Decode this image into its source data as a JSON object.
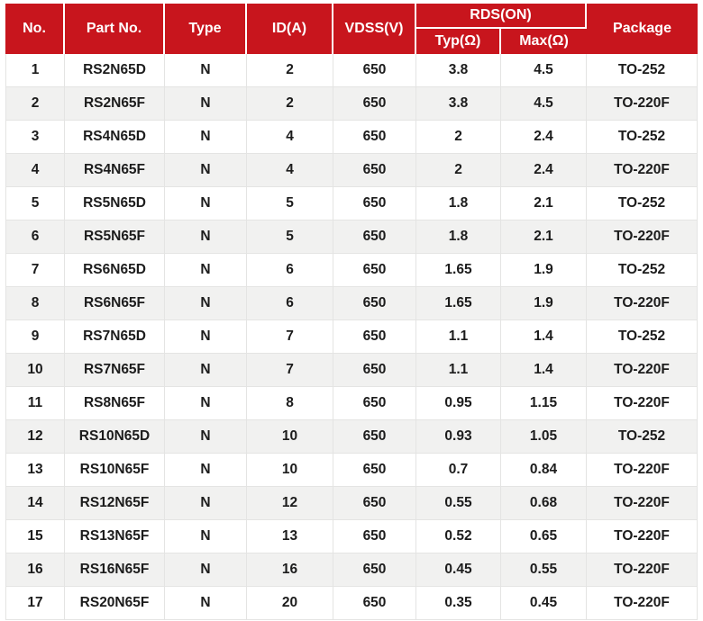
{
  "colors": {
    "header_bg": "#c8151d",
    "header_text": "#ffffff",
    "row_alt_bg": "#f1f1f0",
    "body_text": "#1c1c1c",
    "grid_line": "#e4e4e3"
  },
  "table": {
    "columns": {
      "no": "No.",
      "part_no": "Part No.",
      "type": "Type",
      "id_a": "ID(A)",
      "vdss_v": "VDSS(V)",
      "rds_on_group": "RDS(ON)",
      "typ_ohm": "Typ(Ω)",
      "max_ohm": "Max(Ω)",
      "package": "Package"
    },
    "rows": [
      [
        "1",
        "RS2N65D",
        "N",
        "2",
        "650",
        "3.8",
        "4.5",
        "TO-252"
      ],
      [
        "2",
        "RS2N65F",
        "N",
        "2",
        "650",
        "3.8",
        "4.5",
        "TO-220F"
      ],
      [
        "3",
        "RS4N65D",
        "N",
        "4",
        "650",
        "2",
        "2.4",
        "TO-252"
      ],
      [
        "4",
        "RS4N65F",
        "N",
        "4",
        "650",
        "2",
        "2.4",
        "TO-220F"
      ],
      [
        "5",
        "RS5N65D",
        "N",
        "5",
        "650",
        "1.8",
        "2.1",
        "TO-252"
      ],
      [
        "6",
        "RS5N65F",
        "N",
        "5",
        "650",
        "1.8",
        "2.1",
        "TO-220F"
      ],
      [
        "7",
        "RS6N65D",
        "N",
        "6",
        "650",
        "1.65",
        "1.9",
        "TO-252"
      ],
      [
        "8",
        "RS6N65F",
        "N",
        "6",
        "650",
        "1.65",
        "1.9",
        "TO-220F"
      ],
      [
        "9",
        "RS7N65D",
        "N",
        "7",
        "650",
        "1.1",
        "1.4",
        "TO-252"
      ],
      [
        "10",
        "RS7N65F",
        "N",
        "7",
        "650",
        "1.1",
        "1.4",
        "TO-220F"
      ],
      [
        "11",
        "RS8N65F",
        "N",
        "8",
        "650",
        "0.95",
        "1.15",
        "TO-220F"
      ],
      [
        "12",
        "RS10N65D",
        "N",
        "10",
        "650",
        "0.93",
        "1.05",
        "TO-252"
      ],
      [
        "13",
        "RS10N65F",
        "N",
        "10",
        "650",
        "0.7",
        "0.84",
        "TO-220F"
      ],
      [
        "14",
        "RS12N65F",
        "N",
        "12",
        "650",
        "0.55",
        "0.68",
        "TO-220F"
      ],
      [
        "15",
        "RS13N65F",
        "N",
        "13",
        "650",
        "0.52",
        "0.65",
        "TO-220F"
      ],
      [
        "16",
        "RS16N65F",
        "N",
        "16",
        "650",
        "0.45",
        "0.55",
        "TO-220F"
      ],
      [
        "17",
        "RS20N65F",
        "N",
        "20",
        "650",
        "0.35",
        "0.45",
        "TO-220F"
      ]
    ]
  }
}
